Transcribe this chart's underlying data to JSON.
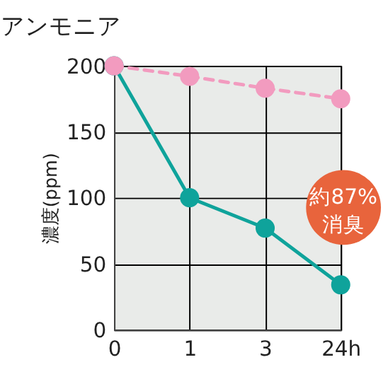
{
  "chart_data": {
    "type": "line",
    "title": "アンモニア",
    "ylabel": "濃度(ppm)",
    "categories": [
      "0",
      "1",
      "3",
      "24h"
    ],
    "series": [
      {
        "color": "#f29bbf",
        "values": [
          200,
          192,
          183,
          175
        ],
        "line_style": "dashed"
      },
      {
        "color": "#0fa39b",
        "values": [
          200,
          100,
          77,
          34
        ],
        "line_style": "solid"
      }
    ],
    "ylim": [
      0,
      200
    ],
    "yticks": [
      0,
      50,
      100,
      150,
      200
    ],
    "grid": true,
    "marker": "circle",
    "annotations": [
      "約87%\n消臭"
    ]
  }
}
